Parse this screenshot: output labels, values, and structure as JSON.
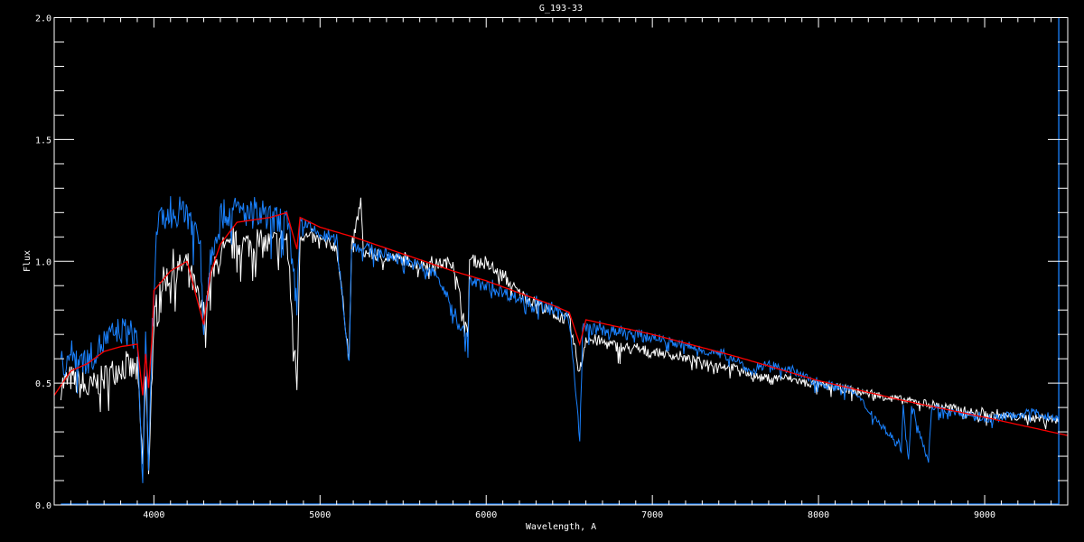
{
  "chart_data": {
    "type": "line",
    "title": "G_193-33",
    "xlabel": "Wavelength, A",
    "ylabel": "Flux",
    "xlim": [
      3400,
      9500
    ],
    "ylim": [
      0.0,
      2.0
    ],
    "x_major_ticks": [
      4000,
      5000,
      6000,
      7000,
      8000,
      9000
    ],
    "x_tick_labels": [
      "4000",
      "5000",
      "6000",
      "7000",
      "8000",
      "9000"
    ],
    "x_minor_step": 100,
    "y_major_ticks": [
      0.0,
      0.5,
      1.0,
      1.5,
      2.0
    ],
    "y_tick_labels": [
      "0.0",
      "0.5",
      "1.0",
      "1.5",
      "2.0"
    ],
    "y_minor_step": 0.1,
    "grid": false,
    "background": "#000000",
    "axis_color": "#ffffff",
    "series": [
      {
        "color": "#ffffff",
        "points": [
          [
            3440,
            0.52
          ],
          [
            3500,
            0.55
          ],
          [
            3600,
            0.5
          ],
          [
            3700,
            0.55
          ],
          [
            3800,
            0.6
          ],
          [
            3900,
            0.58
          ],
          [
            3933,
            0.2
          ],
          [
            3950,
            0.55
          ],
          [
            3968,
            0.18
          ],
          [
            3990,
            0.6
          ],
          [
            4020,
            0.92
          ],
          [
            4100,
            0.98
          ],
          [
            4200,
            1.02
          ],
          [
            4300,
            0.8
          ],
          [
            4340,
            0.95
          ],
          [
            4400,
            1.05
          ],
          [
            4500,
            1.1
          ],
          [
            4600,
            1.1
          ],
          [
            4700,
            1.1
          ],
          [
            4800,
            1.12
          ],
          [
            4861,
            0.51
          ],
          [
            4880,
            1.12
          ],
          [
            5000,
            1.1
          ],
          [
            5100,
            1.07
          ],
          [
            5175,
            0.62
          ],
          [
            5190,
            1.06
          ],
          [
            5245,
            1.26
          ],
          [
            5260,
            1.05
          ],
          [
            5400,
            1.03
          ],
          [
            5500,
            1.02
          ],
          [
            5600,
            1.0
          ],
          [
            5700,
            1.0
          ],
          [
            5800,
            1.01
          ],
          [
            5890,
            0.7
          ],
          [
            5900,
            1.02
          ],
          [
            6000,
            1.0
          ],
          [
            6100,
            0.95
          ],
          [
            6200,
            0.88
          ],
          [
            6300,
            0.84
          ],
          [
            6400,
            0.8
          ],
          [
            6500,
            0.77
          ],
          [
            6563,
            0.55
          ],
          [
            6600,
            0.7
          ],
          [
            6700,
            0.68
          ],
          [
            6800,
            0.66
          ],
          [
            7000,
            0.64
          ],
          [
            7200,
            0.61
          ],
          [
            7500,
            0.57
          ],
          [
            7650,
            0.53
          ],
          [
            7800,
            0.53
          ],
          [
            8000,
            0.5
          ],
          [
            8200,
            0.48
          ],
          [
            8500,
            0.44
          ],
          [
            8700,
            0.42
          ],
          [
            9000,
            0.38
          ],
          [
            9200,
            0.37
          ],
          [
            9400,
            0.36
          ],
          [
            9446,
            0.36
          ]
        ]
      },
      {
        "color": "#1a82ff",
        "points": [
          [
            3440,
            0.6
          ],
          [
            3500,
            0.65
          ],
          [
            3600,
            0.62
          ],
          [
            3700,
            0.7
          ],
          [
            3800,
            0.75
          ],
          [
            3900,
            0.72
          ],
          [
            3933,
            0.12
          ],
          [
            3950,
            0.7
          ],
          [
            3968,
            0.14
          ],
          [
            3990,
            0.75
          ],
          [
            4020,
            1.18
          ],
          [
            4100,
            1.22
          ],
          [
            4200,
            1.25
          ],
          [
            4280,
            1.1
          ],
          [
            4300,
            0.78
          ],
          [
            4340,
            1.05
          ],
          [
            4400,
            1.22
          ],
          [
            4500,
            1.24
          ],
          [
            4600,
            1.22
          ],
          [
            4700,
            1.2
          ],
          [
            4800,
            1.2
          ],
          [
            4861,
            0.85
          ],
          [
            4880,
            1.18
          ],
          [
            5000,
            1.12
          ],
          [
            5100,
            1.1
          ],
          [
            5175,
            0.59
          ],
          [
            5190,
            1.08
          ],
          [
            5300,
            1.06
          ],
          [
            5500,
            1.02
          ],
          [
            5700,
            0.96
          ],
          [
            5890,
            0.68
          ],
          [
            5900,
            0.93
          ],
          [
            6000,
            0.91
          ],
          [
            6200,
            0.86
          ],
          [
            6400,
            0.81
          ],
          [
            6500,
            0.79
          ],
          [
            6563,
            0.27
          ],
          [
            6580,
            0.74
          ],
          [
            6700,
            0.73
          ],
          [
            6800,
            0.72
          ],
          [
            7000,
            0.7
          ],
          [
            7200,
            0.66
          ],
          [
            7500,
            0.61
          ],
          [
            7600,
            0.55
          ],
          [
            7650,
            0.58
          ],
          [
            7800,
            0.57
          ],
          [
            8000,
            0.51
          ],
          [
            8200,
            0.48
          ],
          [
            8498,
            0.24
          ],
          [
            8510,
            0.43
          ],
          [
            8542,
            0.18
          ],
          [
            8560,
            0.42
          ],
          [
            8662,
            0.19
          ],
          [
            8680,
            0.41
          ],
          [
            8800,
            0.39
          ],
          [
            9000,
            0.36
          ],
          [
            9100,
            0.37
          ],
          [
            9300,
            0.39
          ],
          [
            9446,
            0.36
          ]
        ]
      },
      {
        "color": "#ff0000",
        "points": [
          [
            3400,
            0.45
          ],
          [
            3500,
            0.55
          ],
          [
            3600,
            0.58
          ],
          [
            3700,
            0.63
          ],
          [
            3800,
            0.65
          ],
          [
            3900,
            0.66
          ],
          [
            3933,
            0.45
          ],
          [
            3950,
            0.62
          ],
          [
            3968,
            0.48
          ],
          [
            3990,
            0.7
          ],
          [
            4000,
            0.88
          ],
          [
            4100,
            0.96
          ],
          [
            4200,
            1.0
          ],
          [
            4300,
            0.74
          ],
          [
            4340,
            0.95
          ],
          [
            4400,
            1.07
          ],
          [
            4500,
            1.16
          ],
          [
            4600,
            1.17
          ],
          [
            4700,
            1.18
          ],
          [
            4800,
            1.2
          ],
          [
            4861,
            1.05
          ],
          [
            4880,
            1.18
          ],
          [
            5000,
            1.14
          ],
          [
            5200,
            1.1
          ],
          [
            5500,
            1.03
          ],
          [
            5800,
            0.96
          ],
          [
            6000,
            0.92
          ],
          [
            6200,
            0.87
          ],
          [
            6400,
            0.82
          ],
          [
            6500,
            0.79
          ],
          [
            6563,
            0.66
          ],
          [
            6600,
            0.76
          ],
          [
            7000,
            0.7
          ],
          [
            7500,
            0.61
          ],
          [
            8000,
            0.51
          ],
          [
            8500,
            0.43
          ],
          [
            9000,
            0.36
          ],
          [
            9500,
            0.285
          ]
        ]
      }
    ],
    "reference_lines": [
      {
        "color": "#1a82ff",
        "orientation": "vertical",
        "x": 9446
      },
      {
        "color": "#1a82ff",
        "orientation": "horizontal",
        "y": 0.0,
        "x_range": [
          3440,
          9446
        ]
      }
    ]
  }
}
